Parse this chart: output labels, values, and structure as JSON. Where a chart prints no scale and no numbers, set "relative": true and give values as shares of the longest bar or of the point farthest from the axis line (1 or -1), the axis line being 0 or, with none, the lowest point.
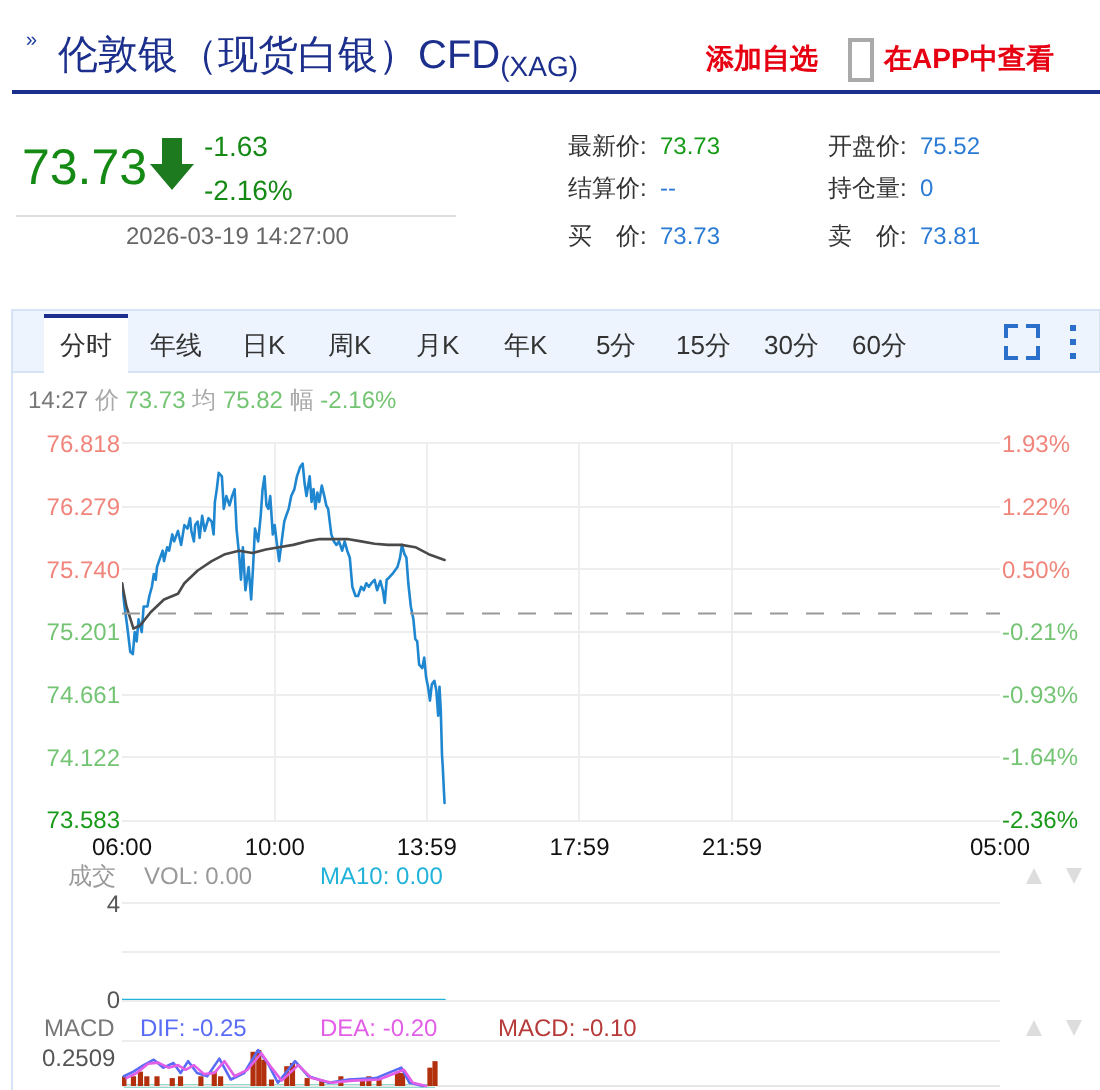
{
  "chart_data": [
    {
      "type": "line",
      "title": "伦敦银（现货白银）CFD$_{(XAG)}$",
      "annotations": [
        "»",
        "添加自选",
        "在APP中查看",
        "73.73",
        "-1.63",
        "-2.16%",
        "2026-03-19 14:27:00",
        "最新价:",
        "73.73",
        "开盘价:",
        "75.52",
        "结算价:",
        "--",
        "持仓量:",
        "0",
        "买　价:",
        "73.73",
        "卖　价:",
        "73.81",
        "分时",
        "年线",
        "日K",
        "周K",
        "月K",
        "年K",
        "5分",
        "15分",
        "30分",
        "60分",
        "14:27",
        "价",
        "73.73",
        "均",
        "75.82",
        "幅",
        "-2.16%"
      ],
      "series": [
        {
          "color": "#1f86d0",
          "x": [
            "2026-03-19T06:00",
            "2026-03-19T06:04",
            "2026-03-19T06:08",
            "2026-03-19T06:13",
            "2026-03-19T06:17",
            "2026-03-19T06:20",
            "2026-03-19T06:23",
            "2026-03-19T06:26",
            "2026-03-19T06:31",
            "2026-03-19T06:34",
            "2026-03-19T06:40",
            "2026-03-19T06:43",
            "2026-03-19T06:47",
            "2026-03-19T06:50",
            "2026-03-19T06:53",
            "2026-03-19T06:55",
            "2026-03-19T07:00",
            "2026-03-19T07:04",
            "2026-03-19T07:06",
            "2026-03-19T07:11",
            "2026-03-19T07:14",
            "2026-03-19T07:19",
            "2026-03-19T07:22",
            "2026-03-19T07:28",
            "2026-03-19T07:33",
            "2026-03-19T07:38",
            "2026-03-19T07:43",
            "2026-03-19T07:47",
            "2026-03-19T07:49",
            "2026-03-19T07:53",
            "2026-03-19T07:55",
            "2026-03-19T07:59",
            "2026-03-19T08:02",
            "2026-03-19T08:06",
            "2026-03-19T08:10",
            "2026-03-19T08:16",
            "2026-03-19T08:21",
            "2026-03-19T08:24",
            "2026-03-19T08:26",
            "2026-03-19T08:29",
            "2026-03-19T08:32",
            "2026-03-19T08:37",
            "2026-03-19T08:40",
            "2026-03-19T08:44",
            "2026-03-19T08:49",
            "2026-03-19T08:53",
            "2026-03-19T08:57",
            "2026-03-19T09:00",
            "2026-03-19T09:04",
            "2026-03-19T09:07",
            "2026-03-19T09:10",
            "2026-03-19T09:14",
            "2026-03-19T09:19",
            "2026-03-19T09:23",
            "2026-03-19T09:26",
            "2026-03-19T09:29",
            "2026-03-19T09:34",
            "2026-03-19T09:38",
            "2026-03-19T09:41",
            "2026-03-19T09:44",
            "2026-03-19T09:47",
            "2026-03-19T09:50",
            "2026-03-19T09:53",
            "2026-03-19T09:57",
            "2026-03-19T10:00",
            "2026-03-19T10:03",
            "2026-03-19T10:07",
            "2026-03-19T10:11",
            "2026-03-19T10:15",
            "2026-03-19T10:18",
            "2026-03-19T10:22",
            "2026-03-19T10:26",
            "2026-03-19T10:31",
            "2026-03-19T10:35",
            "2026-03-19T10:40",
            "2026-03-19T10:44",
            "2026-03-19T10:47",
            "2026-03-19T10:50",
            "2026-03-19T10:55",
            "2026-03-19T10:58",
            "2026-03-19T11:01",
            "2026-03-19T11:04",
            "2026-03-19T11:07",
            "2026-03-19T11:10",
            "2026-03-19T11:14",
            "2026-03-19T11:18",
            "2026-03-19T11:21",
            "2026-03-19T11:24",
            "2026-03-19T11:29",
            "2026-03-19T11:33",
            "2026-03-19T11:37",
            "2026-03-19T11:41",
            "2026-03-19T11:46",
            "2026-03-19T11:50",
            "2026-03-19T11:54",
            "2026-03-19T11:58",
            "2026-03-19T12:02",
            "2026-03-19T12:07",
            "2026-03-19T12:11",
            "2026-03-19T12:16",
            "2026-03-19T12:20",
            "2026-03-19T12:24",
            "2026-03-19T12:28",
            "2026-03-19T12:32",
            "2026-03-19T12:37",
            "2026-03-19T12:41",
            "2026-03-19T12:46",
            "2026-03-19T12:50",
            "2026-03-19T12:53",
            "2026-03-19T12:56",
            "2026-03-19T13:00",
            "2026-03-19T13:05",
            "2026-03-19T13:09",
            "2026-03-19T13:13",
            "2026-03-19T13:17",
            "2026-03-19T13:20",
            "2026-03-19T13:24",
            "2026-03-19T13:27",
            "2026-03-19T13:30",
            "2026-03-19T13:34",
            "2026-03-19T13:38",
            "2026-03-19T13:41",
            "2026-03-19T13:44",
            "2026-03-19T13:47",
            "2026-03-19T13:52",
            "2026-03-19T13:55",
            "2026-03-19T13:58",
            "2026-03-19T14:01",
            "2026-03-19T14:04",
            "2026-03-19T14:07",
            "2026-03-19T14:11",
            "2026-03-19T14:14",
            "2026-03-19T14:17",
            "2026-03-19T14:19",
            "2026-03-19T14:21",
            "2026-03-19T14:23",
            "2026-03-19T14:24",
            "2026-03-19T14:26",
            "2026-03-19T14:27"
          ],
          "values": [
            75.62,
            75.42,
            75.26,
            75.03,
            75.01,
            75.2,
            75.12,
            75.31,
            75.2,
            75.42,
            75.42,
            75.51,
            75.59,
            75.7,
            75.65,
            75.76,
            75.84,
            75.9,
            75.81,
            75.93,
            75.9,
            76.04,
            75.98,
            76.07,
            75.95,
            76.12,
            76.09,
            76.18,
            76.07,
            75.98,
            76.12,
            76.15,
            76.01,
            76.2,
            76.07,
            76.18,
            76.15,
            76.04,
            76.32,
            76.43,
            76.57,
            76.54,
            76.26,
            76.37,
            76.29,
            76.37,
            76.43,
            76.09,
            75.87,
            75.65,
            75.93,
            75.56,
            75.76,
            75.48,
            75.76,
            76.09,
            75.98,
            76.2,
            76.43,
            76.54,
            76.29,
            76.26,
            76.37,
            76.04,
            76.12,
            75.98,
            75.81,
            75.98,
            76.15,
            76.2,
            76.26,
            76.37,
            76.43,
            76.54,
            76.62,
            76.65,
            76.48,
            76.37,
            76.54,
            76.32,
            76.43,
            76.26,
            76.4,
            76.32,
            76.46,
            76.37,
            76.29,
            76.26,
            76.04,
            75.98,
            75.95,
            75.98,
            75.9,
            75.98,
            75.9,
            75.84,
            75.59,
            75.51,
            75.51,
            75.59,
            75.56,
            75.62,
            75.59,
            75.62,
            75.65,
            75.56,
            75.64,
            75.56,
            75.45,
            75.65,
            75.67,
            75.7,
            75.73,
            75.76,
            75.84,
            75.95,
            75.87,
            75.84,
            75.62,
            75.42,
            75.31,
            75.14,
            75.12,
            74.92,
            74.89,
            74.98,
            74.81,
            74.73,
            74.61,
            74.75,
            74.78,
            74.7,
            74.48,
            74.73,
            74.53,
            74.14,
            74.06,
            73.83,
            73.73
          ]
        },
        {
          "color": "#4a4a4a",
          "x": [
            "2026-03-19T06:00",
            "2026-03-19T06:07",
            "2026-03-19T06:18",
            "2026-03-19T06:29",
            "2026-03-19T06:45",
            "2026-03-19T07:06",
            "2026-03-19T07:28",
            "2026-03-19T07:38",
            "2026-03-19T07:59",
            "2026-03-19T08:21",
            "2026-03-19T08:42",
            "2026-03-19T09:04",
            "2026-03-19T09:25",
            "2026-03-19T09:46",
            "2026-03-19T10:07",
            "2026-03-19T10:29",
            "2026-03-19T10:50",
            "2026-03-19T11:11",
            "2026-03-19T11:33",
            "2026-03-19T11:54",
            "2026-03-19T12:16",
            "2026-03-19T12:37",
            "2026-03-19T12:58",
            "2026-03-19T13:19",
            "2026-03-19T13:41",
            "2026-03-19T14:02",
            "2026-03-19T14:27"
          ],
          "values": [
            75.62,
            75.42,
            75.23,
            75.26,
            75.37,
            75.48,
            75.53,
            75.62,
            75.73,
            75.81,
            75.87,
            75.9,
            75.88,
            75.91,
            75.93,
            75.95,
            75.98,
            76.0,
            76.0,
            76.0,
            75.98,
            75.96,
            75.95,
            75.95,
            75.93,
            75.87,
            75.82
          ]
        }
      ],
      "xlim": [
        "2026-03-19T06:00",
        "2026-03-20T05:00"
      ],
      "xticks": [
        {
          "value": "2026-03-19T06:00",
          "label": "06:00"
        },
        {
          "value": "2026-03-19T10:00",
          "label": "10:00"
        },
        {
          "value": "2026-03-19T13:59",
          "label": "13:59"
        },
        {
          "value": "2026-03-19T17:59",
          "label": "17:59"
        },
        {
          "value": "2026-03-19T21:59",
          "label": "21:59"
        },
        {
          "value": "2026-03-20T05:00",
          "label": "05:00"
        }
      ],
      "ylim": [
        73.583,
        76.818
      ],
      "yticks": [
        73.583,
        74.122,
        74.661,
        75.201,
        {
          "value": 75.74,
          "label": "75.740"
        },
        76.279,
        76.818
      ],
      "y2lim": [
        -2.36,
        1.93
      ],
      "y2ticks": [
        {
          "value": -2.36,
          "label": "-2.36%"
        },
        {
          "value": -1.64,
          "label": "-1.64%"
        },
        {
          "value": -0.93,
          "label": "-0.93%"
        },
        {
          "value": -0.21,
          "label": "-0.21%"
        },
        {
          "value": 0.5,
          "label": "0.50%"
        },
        {
          "value": 1.22,
          "label": "1.22%"
        },
        {
          "value": 1.93,
          "label": "1.93%"
        }
      ],
      "ref_lines": [
        {
          "axis": "y",
          "value": 75.36,
          "color": "#999999",
          "line_style": "dashed"
        }
      ],
      "grid": true
    },
    {
      "type": "line",
      "annotations": [
        "成交",
        "VOL: 0.00",
        "MA10: 0.00"
      ],
      "series": [
        {
          "color": "#22b3d8",
          "x": [
            "2026-03-19T06:00",
            "2026-03-19T14:27"
          ],
          "values": [
            0,
            0
          ]
        }
      ],
      "xlim": [
        "2026-03-19T06:00",
        "2026-03-20T05:00"
      ],
      "ylim": [
        0,
        4
      ],
      "yticks": [
        0,
        {
          "value": 2,
          "label": null
        },
        4
      ],
      "grid": "y",
      "tick_labels": "y"
    },
    {
      "type": "bar",
      "relative": true,
      "annotations": [
        "MACD",
        "DIF: -0.25",
        "DEA: -0.20",
        "MACD: -0.10",
        "0.2509"
      ],
      "series": [
        {
          "type": "bar",
          "color": "#b3300c",
          "x": [
            "2026-03-19T06:03",
            "2026-03-19T06:18",
            "2026-03-19T06:29",
            "2026-03-19T06:39",
            "2026-03-19T06:55",
            "2026-03-19T07:19",
            "2026-03-19T07:32",
            "2026-03-19T08:04",
            "2026-03-19T08:25",
            "2026-03-19T08:35",
            "2026-03-19T09:26",
            "2026-03-19T09:35",
            "2026-03-19T09:43",
            "2026-03-19T09:55",
            "2026-03-19T10:19",
            "2026-03-19T10:28",
            "2026-03-19T10:51",
            "2026-03-19T11:14",
            "2026-03-19T11:44",
            "2026-03-19T12:18",
            "2026-03-19T12:28",
            "2026-03-19T12:44",
            "2026-03-19T13:13",
            "2026-03-19T13:21",
            "2026-03-19T14:04",
            "2026-03-19T14:12"
          ],
          "values": [
            0.27,
            0.27,
            0.4,
            0.27,
            0.27,
            0.22,
            0.27,
            0.27,
            0.4,
            0.27,
            0.95,
            1.0,
            0.73,
            0.18,
            0.55,
            0.64,
            0.22,
            0.15,
            0.27,
            0.22,
            0.27,
            0.22,
            0.4,
            0.36,
            0.51,
            0.69
          ]
        },
        {
          "type": "line",
          "color": "#5a6cf5",
          "x": [
            "2026-03-19T06:03",
            "2026-03-19T06:18",
            "2026-03-19T06:34",
            "2026-03-19T06:50",
            "2026-03-19T07:05",
            "2026-03-19T07:21",
            "2026-03-19T07:32",
            "2026-03-19T07:44",
            "2026-03-19T07:58",
            "2026-03-19T08:14",
            "2026-03-19T08:33",
            "2026-03-19T08:51",
            "2026-03-19T09:12",
            "2026-03-19T09:34",
            "2026-03-19T09:49",
            "2026-03-19T10:05",
            "2026-03-19T10:32",
            "2026-03-19T10:53",
            "2026-03-19T11:25",
            "2026-03-19T11:56",
            "2026-03-19T12:39",
            "2026-03-19T13:19",
            "2026-03-19T13:32",
            "2026-03-19T13:53"
          ],
          "values": [
            0.27,
            0.4,
            0.58,
            0.73,
            0.51,
            0.64,
            0.36,
            0.69,
            0.36,
            0.27,
            0.76,
            0.18,
            0.36,
            1.0,
            0.64,
            0.09,
            0.69,
            0.27,
            0.09,
            0.18,
            0.22,
            0.51,
            0.09,
            0.0
          ]
        },
        {
          "type": "line",
          "color": "#e25ee6",
          "x": [
            "2026-03-19T06:07",
            "2026-03-19T06:23",
            "2026-03-19T06:41",
            "2026-03-19T06:57",
            "2026-03-19T07:13",
            "2026-03-19T07:28",
            "2026-03-19T07:40",
            "2026-03-19T07:53",
            "2026-03-19T08:09",
            "2026-03-19T08:25",
            "2026-03-19T08:41",
            "2026-03-19T08:57",
            "2026-03-19T09:17",
            "2026-03-19T09:39",
            "2026-03-19T09:55",
            "2026-03-19T10:11",
            "2026-03-19T10:37",
            "2026-03-19T10:58",
            "2026-03-19T11:30",
            "2026-03-19T12:02",
            "2026-03-19T12:44",
            "2026-03-19T13:23",
            "2026-03-19T13:37",
            "2026-03-19T13:58"
          ],
          "values": [
            0.22,
            0.36,
            0.62,
            0.65,
            0.51,
            0.58,
            0.45,
            0.58,
            0.33,
            0.36,
            0.69,
            0.27,
            0.45,
            0.91,
            0.51,
            0.15,
            0.58,
            0.22,
            0.09,
            0.15,
            0.18,
            0.45,
            0.09,
            0.0
          ]
        }
      ],
      "xlim": [
        "2026-03-19T06:00",
        "2026-03-20T05:00"
      ],
      "tick_labels": false
    }
  ]
}
